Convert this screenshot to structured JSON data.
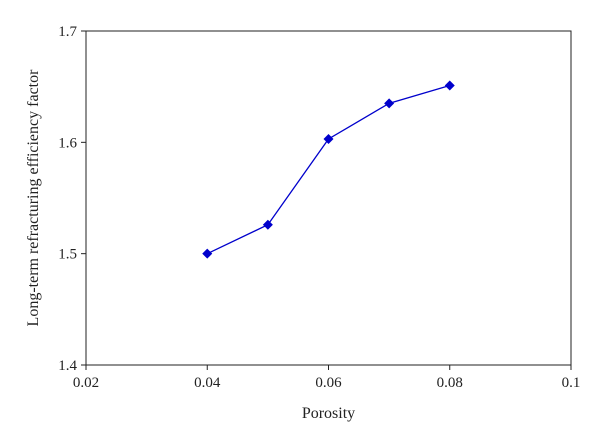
{
  "chart_data": {
    "type": "line",
    "title": "",
    "xlabel": "Porosity",
    "ylabel": "Long-term refracturing efficiency factor",
    "xlim": [
      0.02,
      0.1
    ],
    "ylim": [
      1.4,
      1.7
    ],
    "x_ticks": [
      0.02,
      0.04,
      0.06,
      0.08,
      0.1
    ],
    "x_tick_labels": [
      "0.02",
      "0.04",
      "0.06",
      "0.08",
      "0.1"
    ],
    "y_ticks": [
      1.4,
      1.5,
      1.6,
      1.7
    ],
    "y_tick_labels": [
      "1.4",
      "1.5",
      "1.6",
      "1.7"
    ],
    "grid": false,
    "legend": "none",
    "series": [
      {
        "marker": "diamond",
        "color": "#0000cc",
        "x": [
          0.04,
          0.05,
          0.06,
          0.07,
          0.08
        ],
        "y": [
          1.5,
          1.526,
          1.603,
          1.635,
          1.651
        ]
      }
    ]
  }
}
